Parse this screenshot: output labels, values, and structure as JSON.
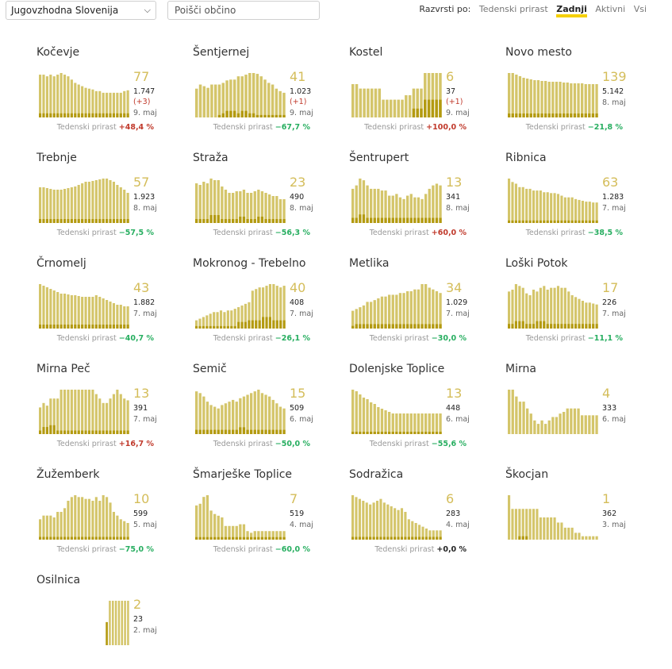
{
  "region_select": {
    "value": "Jugovzhodna Slovenija"
  },
  "search": {
    "placeholder": "Poišči občino"
  },
  "sort": {
    "label": "Razvrsti po:",
    "options": [
      "Tedenski prirast",
      "Zadnji",
      "Aktivni",
      "Vsi"
    ],
    "active": "Zadnji"
  },
  "weekly_label": "Tedenski prirast",
  "colors": {
    "bar": "#d4c56a",
    "bar_dark": "#b39a10",
    "accent": "#f5d000",
    "up": "#c0392b",
    "down": "#27ae60"
  },
  "chart_data": [
    {
      "type": "bar",
      "name": "Kočevje",
      "current": "77",
      "total": "1.747",
      "delta": "(+3)",
      "date": "9. maj",
      "weekly": "+48,4 %",
      "trend": "up",
      "values": [
        52,
        52,
        50,
        52,
        50,
        52,
        54,
        52,
        50,
        46,
        42,
        40,
        38,
        36,
        35,
        34,
        32,
        32,
        30,
        30,
        30,
        30,
        30,
        30,
        32,
        33
      ],
      "dark": [
        5,
        5,
        5,
        5,
        5,
        5,
        5,
        5,
        5,
        5,
        5,
        5,
        5,
        5,
        5,
        5,
        5,
        5,
        5,
        5,
        5,
        5,
        5,
        5,
        5,
        5
      ],
      "scale": "linear"
    },
    {
      "type": "bar",
      "name": "Šentjernej",
      "current": "41",
      "total": "1.023",
      "delta": "(+1)",
      "date": "9. maj",
      "weekly": "−67,7 %",
      "trend": "down",
      "values": [
        35,
        40,
        38,
        36,
        40,
        40,
        40,
        42,
        45,
        46,
        46,
        50,
        50,
        52,
        54,
        54,
        53,
        50,
        46,
        42,
        40,
        35,
        32,
        30
      ],
      "dark": [
        0,
        0,
        0,
        0,
        0,
        0,
        3,
        5,
        8,
        8,
        8,
        5,
        8,
        8,
        5,
        5,
        3,
        3,
        3,
        3,
        3,
        3,
        3,
        3
      ],
      "scale": "linear"
    },
    {
      "type": "bar",
      "name": "Kostel",
      "current": "6",
      "total": "37",
      "delta": "(+1)",
      "date": "9. maj",
      "weekly": "+100,0 %",
      "trend": "up",
      "values": [
        30,
        30,
        26,
        26,
        26,
        26,
        26,
        26,
        16,
        16,
        16,
        16,
        16,
        16,
        20,
        20,
        26,
        26,
        26,
        40,
        40,
        40,
        40,
        40
      ],
      "dark": [
        0,
        0,
        0,
        0,
        0,
        0,
        0,
        0,
        0,
        0,
        0,
        0,
        0,
        0,
        0,
        0,
        8,
        8,
        8,
        16,
        16,
        16,
        16,
        16
      ],
      "scale": "log"
    },
    {
      "type": "bar",
      "name": "Novo mesto",
      "current": "139",
      "total": "5.142",
      "delta": "",
      "date": "8. maj",
      "weekly": "−21,8 %",
      "trend": "down",
      "values": [
        56,
        56,
        54,
        52,
        50,
        49,
        48,
        47,
        47,
        46,
        46,
        45,
        45,
        45,
        45,
        44,
        44,
        43,
        43,
        43,
        43,
        42,
        42,
        42,
        42
      ],
      "dark": [
        5,
        5,
        5,
        5,
        5,
        5,
        5,
        5,
        5,
        5,
        5,
        5,
        5,
        5,
        5,
        5,
        5,
        5,
        5,
        5,
        5,
        5,
        5,
        5,
        5
      ],
      "scale": "linear"
    },
    {
      "type": "bar",
      "name": "Trebnje",
      "current": "57",
      "total": "1.923",
      "delta": "",
      "date": "8. maj",
      "weekly": "−57,5 %",
      "trend": "down",
      "values": [
        45,
        45,
        44,
        43,
        42,
        42,
        42,
        43,
        44,
        45,
        46,
        48,
        50,
        52,
        52,
        53,
        54,
        55,
        56,
        56,
        54,
        52,
        48,
        45,
        42,
        38
      ],
      "dark": [
        5,
        5,
        5,
        5,
        5,
        5,
        5,
        5,
        5,
        5,
        5,
        5,
        5,
        5,
        5,
        5,
        5,
        5,
        5,
        5,
        5,
        5,
        5,
        5,
        5,
        5
      ],
      "scale": "linear"
    },
    {
      "type": "bar",
      "name": "Straža",
      "current": "23",
      "total": "490",
      "delta": "",
      "date": "8. maj",
      "weekly": "−56,3 %",
      "trend": "down",
      "values": [
        50,
        48,
        52,
        50,
        56,
        54,
        54,
        46,
        42,
        38,
        38,
        40,
        40,
        42,
        38,
        38,
        40,
        42,
        40,
        38,
        36,
        34,
        34,
        30,
        30
      ],
      "dark": [
        5,
        5,
        5,
        5,
        10,
        10,
        10,
        5,
        5,
        5,
        5,
        5,
        8,
        8,
        5,
        5,
        5,
        8,
        8,
        5,
        5,
        5,
        5,
        5,
        5
      ],
      "scale": "linear"
    },
    {
      "type": "bar",
      "name": "Šentrupert",
      "current": "13",
      "total": "341",
      "delta": "",
      "date": "8. maj",
      "weekly": "+60,0 %",
      "trend": "up",
      "values": [
        40,
        44,
        52,
        50,
        44,
        40,
        40,
        40,
        38,
        38,
        32,
        32,
        34,
        30,
        28,
        32,
        34,
        30,
        30,
        28,
        34,
        40,
        44,
        46,
        44
      ],
      "dark": [
        6,
        6,
        10,
        10,
        6,
        6,
        6,
        6,
        6,
        6,
        6,
        6,
        6,
        6,
        6,
        6,
        6,
        6,
        6,
        6,
        6,
        6,
        6,
        6,
        6
      ],
      "scale": "linear"
    },
    {
      "type": "bar",
      "name": "Ribnica",
      "current": "63",
      "total": "1.283",
      "delta": "",
      "date": "7. maj",
      "weekly": "−38,5 %",
      "trend": "down",
      "values": [
        52,
        48,
        46,
        42,
        42,
        40,
        40,
        38,
        38,
        38,
        36,
        36,
        35,
        35,
        34,
        32,
        30,
        30,
        30,
        28,
        27,
        26,
        25,
        25,
        24,
        24
      ],
      "dark": [
        3,
        3,
        3,
        3,
        3,
        3,
        3,
        3,
        3,
        3,
        3,
        3,
        3,
        3,
        3,
        3,
        3,
        3,
        3,
        3,
        3,
        3,
        3,
        3,
        3,
        3
      ],
      "scale": "linear"
    },
    {
      "type": "bar",
      "name": "Črnomelj",
      "current": "43",
      "total": "1.882",
      "delta": "",
      "date": "7. maj",
      "weekly": "−40,7 %",
      "trend": "down",
      "values": [
        56,
        54,
        52,
        50,
        48,
        46,
        44,
        44,
        43,
        42,
        42,
        41,
        40,
        40,
        40,
        40,
        42,
        40,
        38,
        36,
        34,
        32,
        30,
        30,
        28,
        28
      ],
      "dark": [
        5,
        5,
        5,
        5,
        5,
        5,
        5,
        5,
        5,
        5,
        5,
        5,
        5,
        5,
        5,
        5,
        5,
        5,
        5,
        5,
        5,
        5,
        5,
        5,
        5,
        5
      ],
      "scale": "linear"
    },
    {
      "type": "bar",
      "name": "Mokronog - Trebelno",
      "current": "40",
      "total": "408",
      "delta": "",
      "date": "7. maj",
      "weekly": "−26,1 %",
      "trend": "down",
      "values": [
        10,
        12,
        14,
        16,
        18,
        20,
        20,
        22,
        20,
        22,
        22,
        24,
        26,
        28,
        30,
        32,
        46,
        48,
        50,
        50,
        52,
        54,
        54,
        52,
        50,
        52
      ],
      "dark": [
        3,
        3,
        3,
        3,
        3,
        3,
        3,
        3,
        3,
        3,
        3,
        3,
        8,
        8,
        8,
        10,
        10,
        10,
        10,
        14,
        14,
        14,
        10,
        10,
        10,
        10
      ],
      "scale": "linear"
    },
    {
      "type": "bar",
      "name": "Metlika",
      "current": "34",
      "total": "1.029",
      "delta": "",
      "date": "7. maj",
      "weekly": "−30,0 %",
      "trend": "down",
      "values": [
        20,
        22,
        24,
        26,
        30,
        30,
        32,
        34,
        36,
        36,
        38,
        38,
        38,
        40,
        40,
        42,
        42,
        44,
        44,
        50,
        50,
        46,
        44,
        42,
        40
      ],
      "dark": [
        3,
        5,
        5,
        5,
        5,
        5,
        5,
        5,
        5,
        5,
        5,
        5,
        5,
        5,
        5,
        5,
        5,
        5,
        5,
        5,
        5,
        5,
        5,
        5,
        5
      ],
      "scale": "linear"
    },
    {
      "type": "bar",
      "name": "Loški Potok",
      "current": "17",
      "total": "226",
      "delta": "",
      "date": "7. maj",
      "weekly": "−11,1 %",
      "trend": "down",
      "values": [
        40,
        42,
        48,
        46,
        44,
        38,
        36,
        42,
        40,
        44,
        46,
        42,
        44,
        44,
        46,
        44,
        44,
        40,
        36,
        34,
        32,
        30,
        28,
        28,
        27,
        26
      ],
      "dark": [
        5,
        5,
        8,
        8,
        8,
        5,
        5,
        5,
        8,
        8,
        8,
        5,
        5,
        5,
        5,
        5,
        5,
        5,
        5,
        5,
        5,
        5,
        5,
        5,
        5,
        5
      ],
      "scale": "linear"
    },
    {
      "type": "bar",
      "name": "Mirna Peč",
      "current": "13",
      "total": "391",
      "delta": "",
      "date": "7. maj",
      "weekly": "+16,7 %",
      "trend": "up",
      "values": [
        30,
        35,
        32,
        40,
        40,
        40,
        50,
        50,
        50,
        50,
        50,
        50,
        50,
        50,
        50,
        50,
        45,
        40,
        35,
        35,
        40,
        45,
        50,
        45,
        40,
        38
      ],
      "dark": [
        4,
        8,
        8,
        10,
        10,
        4,
        4,
        4,
        4,
        4,
        4,
        4,
        4,
        4,
        4,
        4,
        4,
        4,
        4,
        4,
        4,
        4,
        4,
        4,
        4,
        4
      ],
      "scale": "linear"
    },
    {
      "type": "bar",
      "name": "Semič",
      "current": "15",
      "total": "509",
      "delta": "",
      "date": "6. maj",
      "weekly": "−50,0 %",
      "trend": "down",
      "values": [
        50,
        48,
        44,
        38,
        34,
        32,
        30,
        34,
        36,
        38,
        40,
        38,
        42,
        44,
        46,
        48,
        50,
        52,
        48,
        46,
        44,
        40,
        36,
        32,
        30
      ],
      "dark": [
        5,
        5,
        5,
        5,
        5,
        5,
        5,
        5,
        5,
        5,
        5,
        5,
        8,
        8,
        5,
        5,
        5,
        5,
        5,
        5,
        5,
        5,
        5,
        5,
        5
      ],
      "scale": "linear"
    },
    {
      "type": "bar",
      "name": "Dolenjske Toplice",
      "current": "13",
      "total": "448",
      "delta": "",
      "date": "6. maj",
      "weekly": "−55,6 %",
      "trend": "down",
      "values": [
        56,
        54,
        50,
        46,
        44,
        40,
        38,
        34,
        32,
        30,
        28,
        26,
        26,
        26,
        26,
        26,
        26,
        26,
        26,
        26,
        26,
        26,
        26,
        26,
        26
      ],
      "dark": [
        3,
        3,
        3,
        3,
        3,
        3,
        3,
        3,
        3,
        3,
        3,
        3,
        3,
        3,
        3,
        3,
        3,
        3,
        3,
        3,
        3,
        3,
        3,
        3,
        3
      ],
      "scale": "linear"
    },
    {
      "type": "bar",
      "name": "Mirna",
      "current": "4",
      "total": "333",
      "delta": "",
      "date": "6. maj",
      "weekly": "",
      "trend": "none",
      "values": [
        52,
        52,
        44,
        38,
        38,
        30,
        24,
        16,
        12,
        16,
        12,
        16,
        20,
        20,
        24,
        26,
        30,
        30,
        30,
        30,
        22,
        22,
        22,
        22,
        22
      ],
      "dark": [
        0,
        0,
        0,
        0,
        0,
        0,
        0,
        0,
        0,
        0,
        0,
        0,
        0,
        0,
        0,
        0,
        0,
        0,
        0,
        0,
        0,
        0,
        0,
        0,
        0
      ],
      "scale": "log"
    },
    {
      "type": "bar",
      "name": "Žužemberk",
      "current": "10",
      "total": "599",
      "delta": "",
      "date": "5. maj",
      "weekly": "−75,0 %",
      "trend": "down",
      "values": [
        22,
        26,
        26,
        26,
        24,
        30,
        30,
        34,
        42,
        46,
        48,
        46,
        46,
        44,
        44,
        42,
        46,
        42,
        48,
        46,
        40,
        30,
        26,
        22,
        20,
        18
      ],
      "dark": [
        3,
        3,
        3,
        3,
        3,
        3,
        3,
        3,
        3,
        3,
        3,
        3,
        3,
        3,
        3,
        3,
        3,
        3,
        3,
        3,
        3,
        3,
        3,
        3,
        3,
        3
      ],
      "scale": "linear"
    },
    {
      "type": "bar",
      "name": "Šmarješke Toplice",
      "current": "7",
      "total": "519",
      "delta": "",
      "date": "4. maj",
      "weekly": "−60,0 %",
      "trend": "down",
      "values": [
        40,
        42,
        50,
        52,
        34,
        30,
        28,
        26,
        16,
        16,
        16,
        16,
        18,
        18,
        10,
        8,
        10,
        10,
        10,
        10,
        10,
        10,
        10,
        10,
        10
      ],
      "dark": [
        3,
        3,
        3,
        3,
        3,
        3,
        3,
        3,
        3,
        3,
        3,
        3,
        3,
        3,
        3,
        3,
        3,
        3,
        3,
        3,
        3,
        3,
        3,
        3,
        3
      ],
      "scale": "linear"
    },
    {
      "type": "bar",
      "name": "Sodražica",
      "current": "6",
      "total": "283",
      "delta": "",
      "date": "4. maj",
      "weekly": "+0,0 %",
      "trend": "zero",
      "values": [
        48,
        46,
        44,
        42,
        40,
        38,
        40,
        42,
        44,
        40,
        38,
        36,
        34,
        32,
        34,
        30,
        22,
        20,
        18,
        16,
        14,
        12,
        10,
        10,
        10,
        10
      ],
      "dark": [
        3,
        3,
        3,
        3,
        3,
        3,
        3,
        3,
        3,
        3,
        3,
        3,
        3,
        3,
        3,
        3,
        3,
        3,
        3,
        3,
        3,
        3,
        3,
        3,
        3,
        3
      ],
      "scale": "linear"
    },
    {
      "type": "bar",
      "name": "Škocjan",
      "current": "1",
      "total": "362",
      "delta": "",
      "date": "3. maj",
      "weekly": "",
      "trend": "none",
      "values": [
        52,
        36,
        36,
        36,
        36,
        36,
        36,
        36,
        36,
        26,
        26,
        26,
        26,
        26,
        20,
        20,
        14,
        14,
        14,
        8,
        8,
        4,
        4,
        4,
        4,
        4
      ],
      "dark": [
        0,
        0,
        0,
        4,
        4,
        4,
        0,
        0,
        0,
        0,
        0,
        0,
        0,
        0,
        0,
        0,
        0,
        0,
        0,
        0,
        0,
        0,
        0,
        0,
        0,
        0
      ],
      "scale": "log"
    },
    {
      "type": "bar",
      "name": "Osilnica",
      "current": "2",
      "total": "23",
      "delta": "",
      "date": "2. maj",
      "weekly": "",
      "trend": "none",
      "values": [
        0,
        0,
        0,
        0,
        0,
        0,
        0,
        0,
        0,
        0,
        0,
        0,
        0,
        0,
        0,
        0,
        0,
        0,
        0,
        0,
        0,
        0,
        27,
        52,
        52,
        52,
        52,
        52,
        52,
        52
      ],
      "dark": [
        0,
        0,
        0,
        0,
        0,
        0,
        0,
        0,
        0,
        0,
        0,
        0,
        0,
        0,
        0,
        0,
        0,
        0,
        0,
        0,
        0,
        0,
        27,
        0,
        0,
        0,
        0,
        0,
        0,
        0
      ],
      "scale": "log"
    }
  ]
}
